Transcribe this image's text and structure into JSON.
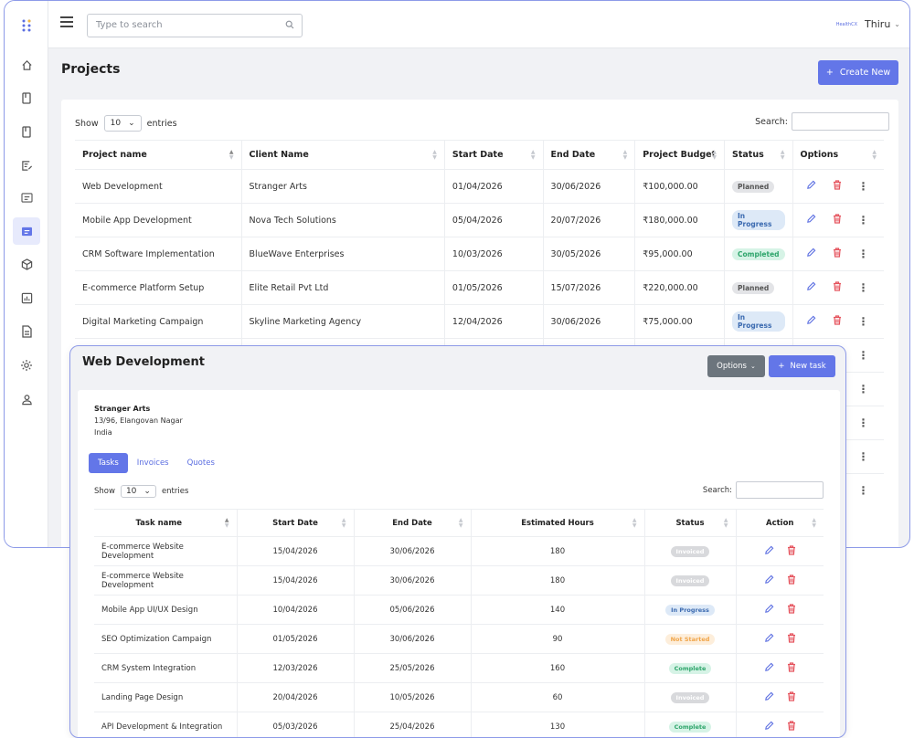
{
  "topbar": {
    "search_placeholder": "Type to search",
    "user_logo": "HealthCX",
    "user_name": "Thiru"
  },
  "page": {
    "title": "Projects",
    "create_button": "Create New"
  },
  "projects_table": {
    "show_label": "Show",
    "entries_value": "10",
    "entries_label": "entries",
    "search_label": "Search:",
    "columns": [
      "Project name",
      "Client Name",
      "Start Date",
      "End Date",
      "Project Budget",
      "Status",
      "Options"
    ],
    "rows": [
      {
        "name": "Web Development",
        "client": "Stranger Arts",
        "start": "01/04/2026",
        "end": "30/06/2026",
        "budget": "₹100,000.00",
        "status": "Planned"
      },
      {
        "name": "Mobile App Development",
        "client": "Nova Tech Solutions",
        "start": "05/04/2026",
        "end": "20/07/2026",
        "budget": "₹180,000.00",
        "status": "In Progress"
      },
      {
        "name": "CRM Software Implementation",
        "client": "BlueWave Enterprises",
        "start": "10/03/2026",
        "end": "30/05/2026",
        "budget": "₹95,000.00",
        "status": "Completed"
      },
      {
        "name": "E-commerce Platform Setup",
        "client": "Elite Retail Pvt Ltd",
        "start": "01/05/2026",
        "end": "15/07/2026",
        "budget": "₹220,000.00",
        "status": "Planned"
      },
      {
        "name": "Digital Marketing Campaign",
        "client": "Skyline Marketing Agency",
        "start": "12/04/2026",
        "end": "30/06/2026",
        "budget": "₹75,000.00",
        "status": "In Progress"
      }
    ]
  },
  "task_panel": {
    "title": "Web Development",
    "options_button": "Options",
    "new_task_button": "New task",
    "client": {
      "name": "Stranger Arts",
      "address_line": "13/96, Elangovan Nagar",
      "country": "India"
    },
    "tabs": [
      "Tasks",
      "Invoices",
      "Quotes"
    ],
    "show_label": "Show",
    "entries_value": "10",
    "entries_label": "entries",
    "search_label": "Search:",
    "columns": [
      "Task name",
      "Start Date",
      "End Date",
      "Estimated Hours",
      "Status",
      "Action"
    ],
    "rows": [
      {
        "name": "E-commerce Website Development",
        "start": "15/04/2026",
        "end": "30/06/2026",
        "hours": "180",
        "status": "Invoiced"
      },
      {
        "name": "E-commerce Website Development",
        "start": "15/04/2026",
        "end": "30/06/2026",
        "hours": "180",
        "status": "Invoiced"
      },
      {
        "name": "Mobile App UI/UX Design",
        "start": "10/04/2026",
        "end": "05/06/2026",
        "hours": "140",
        "status": "In Progress"
      },
      {
        "name": "SEO Optimization Campaign",
        "start": "01/05/2026",
        "end": "30/06/2026",
        "hours": "90",
        "status": "Not Started"
      },
      {
        "name": "CRM System Integration",
        "start": "12/03/2026",
        "end": "25/05/2026",
        "hours": "160",
        "status": "Complete"
      },
      {
        "name": "Landing Page Design",
        "start": "20/04/2026",
        "end": "10/05/2026",
        "hours": "60",
        "status": "Invoiced"
      },
      {
        "name": "API Development & Integration",
        "start": "05/03/2026",
        "end": "25/04/2026",
        "hours": "130",
        "status": "Complete"
      }
    ]
  },
  "sidebar_icons": [
    "grid-dots-icon",
    "home-icon",
    "book-icon",
    "book-icon",
    "edit-note-icon",
    "id-card-icon",
    "projects-icon",
    "box-icon",
    "chart-icon",
    "document-icon",
    "settings-icon",
    "user-icon"
  ],
  "colors": {
    "accent": "#6376e8",
    "link": "#5b6ee1",
    "delete": "#e5535d"
  }
}
